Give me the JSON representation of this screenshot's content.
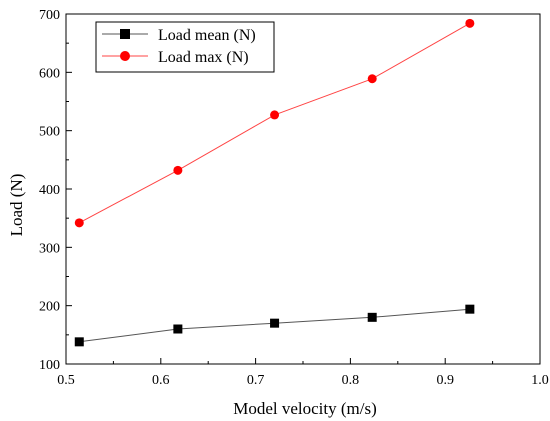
{
  "chart_data": {
    "type": "line",
    "xlabel": "Model velocity (m/s)",
    "ylabel": "Load (N)",
    "xlim": [
      0.5,
      1.0
    ],
    "ylim": [
      100,
      700
    ],
    "xticks": [
      0.5,
      0.6,
      0.7,
      0.8,
      0.9,
      1.0
    ],
    "xtick_labels": [
      "0.5",
      "0.6",
      "0.7",
      "0.8",
      "0.9",
      "1.0"
    ],
    "yticks": [
      100,
      200,
      300,
      400,
      500,
      600,
      700
    ],
    "ytick_labels": [
      "100",
      "200",
      "300",
      "400",
      "500",
      "600",
      "700"
    ],
    "grid": false,
    "legend_position": "top-left",
    "x": [
      0.514,
      0.618,
      0.72,
      0.823,
      0.926
    ],
    "series": [
      {
        "name": "Load mean (N)",
        "values": [
          138,
          160,
          170,
          180,
          194
        ],
        "marker": "square",
        "marker_color": "#000000",
        "line_color": "#555555"
      },
      {
        "name": "Load max (N)",
        "values": [
          342,
          432,
          527,
          589,
          684
        ],
        "marker": "circle",
        "marker_color": "#ff0000",
        "line_color": "#ff4444"
      }
    ]
  }
}
